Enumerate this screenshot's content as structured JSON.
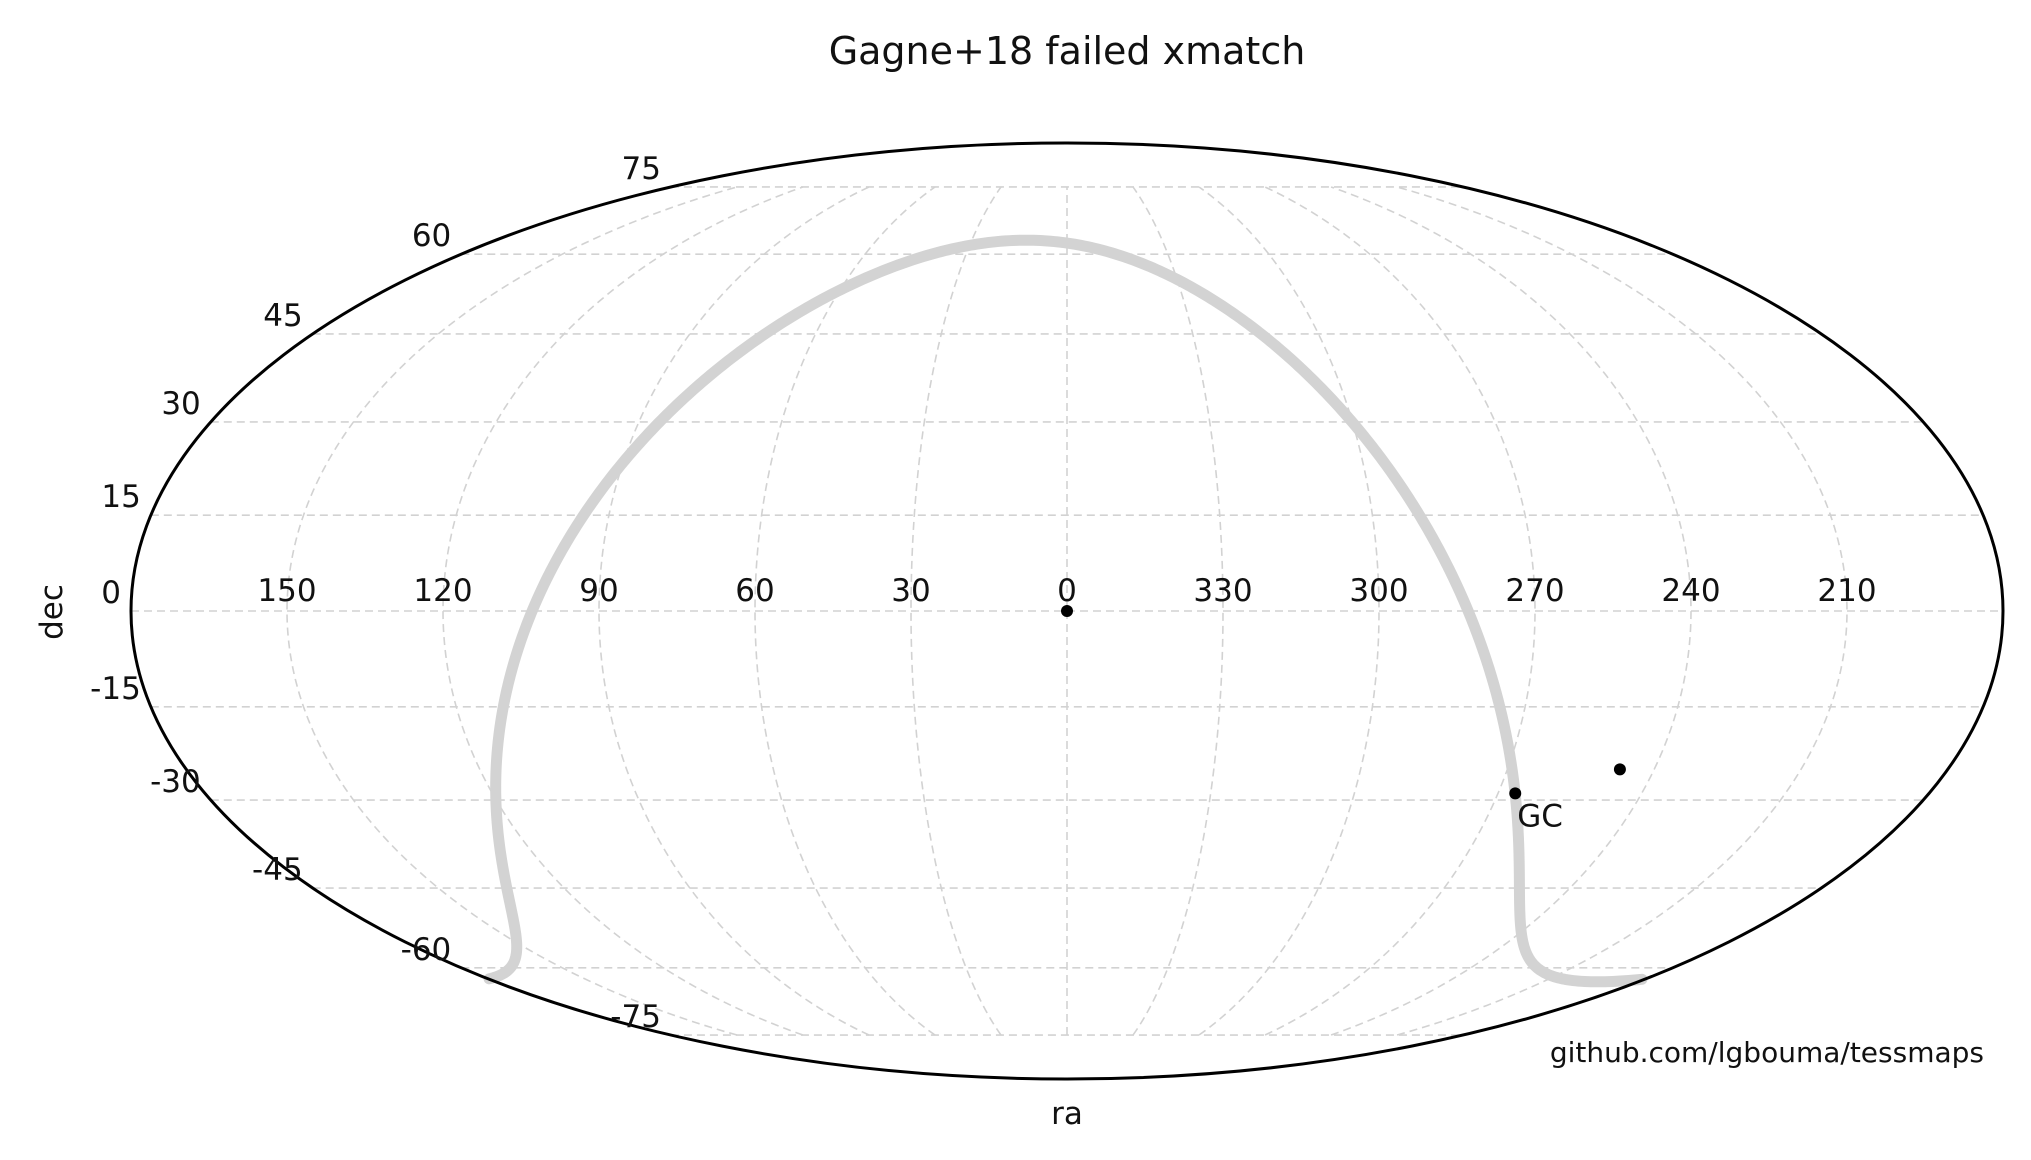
{
  "chart_data": {
    "type": "scatter",
    "projection": "mollweide",
    "title": "Gagne+18 failed xmatch",
    "xlabel": "ra",
    "ylabel": "dec",
    "ra_tick_labels": [
      "150",
      "120",
      "90",
      "60",
      "30",
      "0",
      "330",
      "300",
      "270",
      "240",
      "210"
    ],
    "ra_tick_values": [
      150,
      120,
      90,
      60,
      30,
      0,
      330,
      300,
      270,
      240,
      210
    ],
    "dec_tick_labels": [
      "75",
      "60",
      "45",
      "30",
      "15",
      "0",
      "-15",
      "-30",
      "-45",
      "-60",
      "-75"
    ],
    "dec_tick_values": [
      75,
      60,
      45,
      30,
      15,
      0,
      -15,
      -30,
      -45,
      -60,
      -75
    ],
    "ra_increases": "left",
    "grid": true,
    "points": [
      {
        "ra": 0,
        "dec": 0
      },
      {
        "ra": 247,
        "dec": -25
      },
      {
        "ra": 266.4,
        "dec": -28.9
      }
    ],
    "annotations": [
      {
        "text": "GC",
        "ra": 266.4,
        "dec": -28.9
      }
    ],
    "galactic_plane": true,
    "galactic_plane_color": "#d3d3d3",
    "point_color": "#000000",
    "credit": "github.com/lgbouma/tessmaps"
  }
}
